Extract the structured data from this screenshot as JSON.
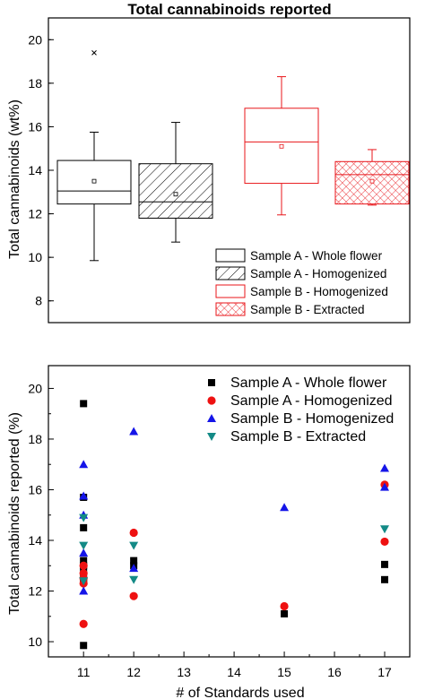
{
  "chart_data": [
    {
      "type": "box",
      "title": "Total cannabinoids reported",
      "xlabel": "",
      "ylabel": "Total cannabinoids (wt%)",
      "ylim": [
        7,
        21
      ],
      "yticks": [
        8,
        10,
        12,
        14,
        16,
        18,
        20
      ],
      "legend_position": "bottom-right",
      "series": [
        {
          "name": "Sample A - Whole flower",
          "color": "#000000",
          "pattern": "none",
          "whisker_low": 9.85,
          "q1": 12.45,
          "median": 13.05,
          "q3": 14.45,
          "whisker_high": 15.75,
          "mean": 13.5,
          "outliers": [
            19.4
          ]
        },
        {
          "name": "Sample A - Homogenized",
          "color": "#000000",
          "pattern": "diagonal",
          "whisker_low": 10.7,
          "q1": 11.8,
          "median": 12.55,
          "q3": 14.3,
          "whisker_high": 16.2,
          "mean": 12.9,
          "outliers": []
        },
        {
          "name": "Sample B - Homogenized",
          "color": "#e8151a",
          "pattern": "none",
          "whisker_low": 11.95,
          "q1": 13.4,
          "median": 15.3,
          "q3": 16.85,
          "whisker_high": 18.3,
          "mean": 15.1,
          "outliers": []
        },
        {
          "name": "Sample B - Extracted",
          "color": "#e8151a",
          "pattern": "crosshatch",
          "whisker_low": 12.4,
          "q1": 12.45,
          "median": 13.8,
          "q3": 14.4,
          "whisker_high": 14.95,
          "mean": 13.5,
          "outliers": []
        }
      ]
    },
    {
      "type": "scatter",
      "title": "",
      "xlabel": "# of Standards used",
      "ylabel": "Total cannabinoids reported (%)",
      "xlim": [
        10.3,
        17.5
      ],
      "ylim": [
        9.4,
        20.9
      ],
      "xticks": [
        11,
        12,
        13,
        14,
        15,
        16,
        17
      ],
      "yticks": [
        10,
        12,
        14,
        16,
        18,
        20
      ],
      "legend_position": "top-right",
      "series": [
        {
          "name": "Sample A - Whole flower",
          "marker": "square",
          "color": "#000000",
          "points": [
            [
              11,
              19.4
            ],
            [
              11,
              15.7
            ],
            [
              11,
              14.5
            ],
            [
              11,
              13.2
            ],
            [
              11,
              13.0
            ],
            [
              11,
              12.8
            ],
            [
              11,
              12.5
            ],
            [
              11,
              12.4
            ],
            [
              11,
              9.85
            ],
            [
              12,
              13.2
            ],
            [
              12,
              13.0
            ],
            [
              15,
              11.1
            ],
            [
              17,
              13.05
            ],
            [
              17,
              12.45
            ]
          ]
        },
        {
          "name": "Sample A - Homogenized",
          "marker": "circle",
          "color": "#ee1111",
          "points": [
            [
              11,
              13.0
            ],
            [
              11,
              12.7
            ],
            [
              11,
              12.5
            ],
            [
              11,
              12.3
            ],
            [
              11,
              10.7
            ],
            [
              12,
              14.3
            ],
            [
              12,
              11.8
            ],
            [
              15,
              11.4
            ],
            [
              17,
              16.2
            ],
            [
              17,
              13.95
            ]
          ]
        },
        {
          "name": "Sample B - Homogenized",
          "marker": "triangle-up",
          "color": "#1515e8",
          "points": [
            [
              11,
              17.0
            ],
            [
              11,
              15.75
            ],
            [
              11,
              15.0
            ],
            [
              11,
              13.5
            ],
            [
              11,
              12.0
            ],
            [
              12,
              18.3
            ],
            [
              12,
              12.9
            ],
            [
              15,
              15.3
            ],
            [
              17,
              16.85
            ],
            [
              17,
              16.1
            ]
          ]
        },
        {
          "name": "Sample B - Extracted",
          "marker": "triangle-down",
          "color": "#138a86",
          "points": [
            [
              11,
              14.9
            ],
            [
              11,
              13.8
            ],
            [
              11,
              12.4
            ],
            [
              12,
              13.8
            ],
            [
              12,
              12.45
            ],
            [
              17,
              14.45
            ]
          ]
        }
      ]
    }
  ]
}
